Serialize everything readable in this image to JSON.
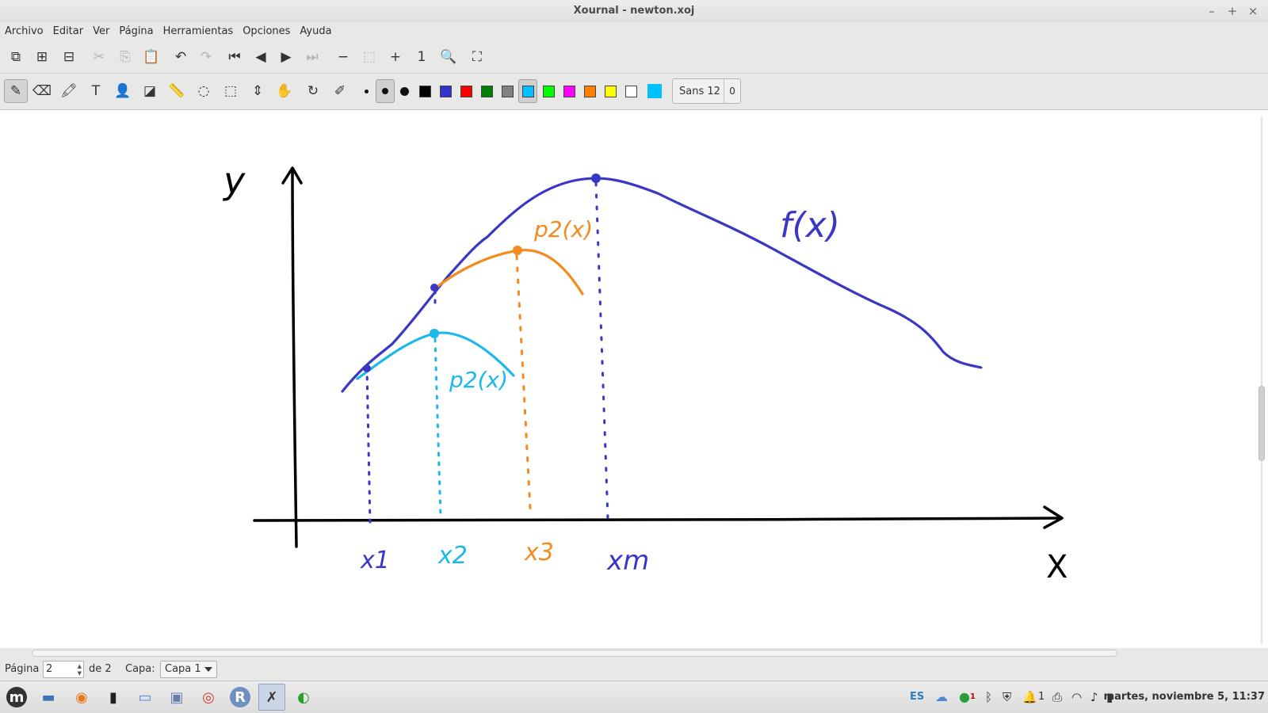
{
  "window": {
    "title": "Xournal - newton.xoj",
    "minimize_glyph": "–",
    "maximize_glyph": "+",
    "close_glyph": "×"
  },
  "menubar": {
    "items": [
      "Archivo",
      "Editar",
      "Ver",
      "Página",
      "Herramientas",
      "Opciones",
      "Ayuda"
    ]
  },
  "toolbar1": {
    "buttons": [
      {
        "name": "new-page-icon",
        "glyph": "⧉",
        "enabled": true
      },
      {
        "name": "add-page-icon",
        "glyph": "⊞",
        "enabled": true
      },
      {
        "name": "delete-page-icon",
        "glyph": "⊟",
        "enabled": true
      },
      {
        "name": "cut-icon",
        "glyph": "✂",
        "enabled": false
      },
      {
        "name": "copy-icon",
        "glyph": "⎘",
        "enabled": false
      },
      {
        "name": "paste-icon",
        "glyph": "📋",
        "enabled": true
      },
      {
        "name": "undo-icon",
        "glyph": "↶",
        "enabled": true
      },
      {
        "name": "redo-icon",
        "glyph": "↷",
        "enabled": false
      },
      {
        "name": "first-page-icon",
        "glyph": "⏮",
        "enabled": true
      },
      {
        "name": "previous-page-icon",
        "glyph": "◀",
        "enabled": true
      },
      {
        "name": "next-page-icon",
        "glyph": "▶",
        "enabled": true
      },
      {
        "name": "last-page-icon",
        "glyph": "⏭",
        "enabled": false
      },
      {
        "name": "zoom-out-icon",
        "glyph": "−",
        "enabled": true
      },
      {
        "name": "page-width-icon",
        "glyph": "⬚",
        "enabled": false
      },
      {
        "name": "zoom-in-icon",
        "glyph": "+",
        "enabled": true
      },
      {
        "name": "zoom-normal-icon",
        "glyph": "1",
        "enabled": true
      },
      {
        "name": "zoom-set-icon",
        "glyph": "🔍",
        "enabled": true
      },
      {
        "name": "fullscreen-icon",
        "glyph": "⛶",
        "enabled": true
      }
    ]
  },
  "toolbar2": {
    "tools": [
      {
        "name": "pen-tool-icon",
        "glyph": "✎",
        "active": true
      },
      {
        "name": "eraser-tool-icon",
        "glyph": "⌫",
        "active": false
      },
      {
        "name": "highlighter-tool-icon",
        "glyph": "🖍",
        "active": false
      },
      {
        "name": "text-tool-icon",
        "glyph": "T",
        "active": false
      },
      {
        "name": "image-tool-icon",
        "glyph": "👤",
        "active": false
      },
      {
        "name": "shape-recognizer-icon",
        "glyph": "◪",
        "active": false
      },
      {
        "name": "ruler-icon",
        "glyph": "📏",
        "active": false
      },
      {
        "name": "lasso-select-icon",
        "glyph": "◌",
        "active": false
      },
      {
        "name": "rect-select-icon",
        "glyph": "⬚",
        "active": false
      },
      {
        "name": "vertical-space-icon",
        "glyph": "⇕",
        "active": false
      },
      {
        "name": "hand-tool-icon",
        "glyph": "✋",
        "active": false
      },
      {
        "name": "default-tool-icon",
        "glyph": "↻",
        "active": false
      },
      {
        "name": "default-pen-icon",
        "glyph": "✐",
        "active": false
      }
    ],
    "thickness": [
      "fine",
      "medium",
      "thick"
    ],
    "active_thickness": 1,
    "colors": [
      "#000000",
      "#3333cc",
      "#ff0000",
      "#008000",
      "#808080",
      "#00c0ff",
      "#00ff00",
      "#ff00ff",
      "#ff8000",
      "#ffff00",
      "#ffffff",
      "#00c0ff"
    ],
    "color_names": [
      "black",
      "blue",
      "red",
      "green",
      "gray",
      "light-blue",
      "light-green",
      "magenta",
      "orange",
      "yellow",
      "white",
      "custom"
    ],
    "active_color": 5,
    "font_name": "Sans 12",
    "font_size_display": "0"
  },
  "canvas": {
    "labels": {
      "y_axis": "y",
      "x_axis": "X",
      "f": "f(x)",
      "p2_orange": "p2(x)",
      "p2_cyan": "p2(x)",
      "x1": "x1",
      "x2": "x2",
      "x3": "x3",
      "xm": "xm"
    },
    "ink_colors": {
      "black": "#000000",
      "blue": "#3a37c4",
      "orange": "#f58a1f",
      "cyan": "#1cb8ea"
    }
  },
  "statusbar": {
    "page_label": "Página",
    "page_value": "2",
    "page_of": "de 2",
    "layer_label": "Capa:",
    "layer_value": "Capa 1"
  },
  "taskbar": {
    "apps": [
      {
        "name": "mint-menu-icon",
        "active": false
      },
      {
        "name": "show-desktop-icon",
        "active": false
      },
      {
        "name": "firefox-icon",
        "active": false
      },
      {
        "name": "terminal-icon",
        "active": false
      },
      {
        "name": "files-icon",
        "active": false
      },
      {
        "name": "image-viewer-icon",
        "active": false
      },
      {
        "name": "chrome-icon",
        "active": false
      },
      {
        "name": "rstudio-icon",
        "active": false
      },
      {
        "name": "xournal-icon",
        "active": true
      },
      {
        "name": "app-green-icon",
        "active": false
      }
    ],
    "keyboard_layout": "ES",
    "notif_count": "1",
    "bell_count": "1",
    "clock": "martes, noviembre  5, 11:37"
  }
}
